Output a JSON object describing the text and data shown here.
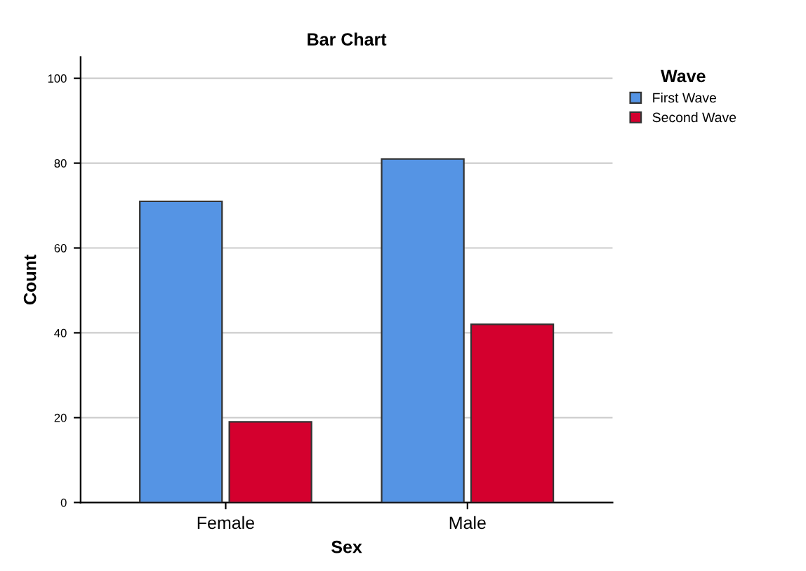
{
  "chart_data": {
    "type": "bar",
    "title": "Bar Chart",
    "xlabel": "Sex",
    "ylabel": "Count",
    "legend_title": "Wave",
    "categories": [
      "Female",
      "Male"
    ],
    "series": [
      {
        "name": "First Wave",
        "color": "#5594e4",
        "values": [
          71,
          81
        ]
      },
      {
        "name": "Second Wave",
        "color": "#d4002e",
        "values": [
          19,
          42
        ]
      }
    ],
    "ylim": [
      0,
      105
    ],
    "yticks": [
      0,
      20,
      40,
      60,
      80,
      100
    ],
    "grid": "y",
    "legend": "top right"
  }
}
